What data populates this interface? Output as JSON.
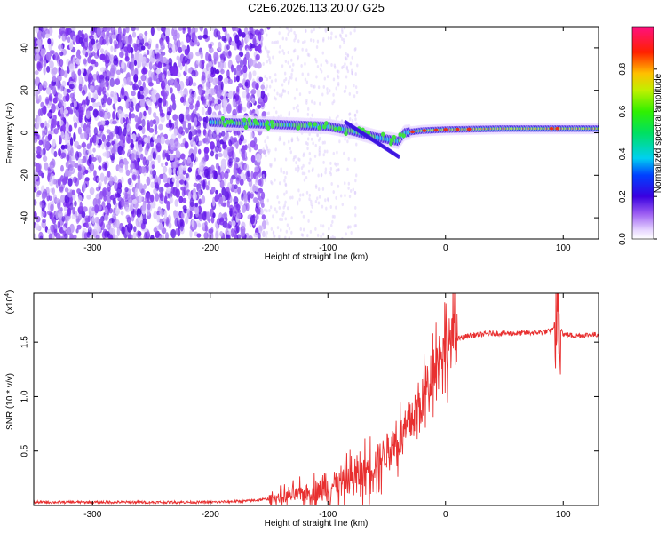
{
  "figure": {
    "title": "C2E6.2026.113.20.07.G25"
  },
  "chart_data": [
    {
      "type": "heatmap",
      "name": "spectrogram",
      "xlabel": "Height of straight line (km)",
      "ylabel": "Frequency (Hz)",
      "xlim": [
        -350,
        130
      ],
      "ylim": [
        -50,
        50
      ],
      "xticks": [
        -300,
        -200,
        -100,
        0,
        100
      ],
      "yticks": [
        -40,
        -20,
        0,
        20,
        40
      ],
      "colorbar": {
        "label": "Normalized spectral amplitude",
        "range": [
          0,
          1
        ],
        "ticks": [
          0.0,
          0.2,
          0.4,
          0.6,
          0.8
        ]
      },
      "ridge": [
        [
          -200,
          5
        ],
        [
          -150,
          4
        ],
        [
          -100,
          3
        ],
        [
          -80,
          1
        ],
        [
          -60,
          -2
        ],
        [
          -40,
          -4
        ],
        [
          -35,
          0
        ],
        [
          -20,
          1
        ],
        [
          0,
          1.5
        ],
        [
          50,
          2
        ],
        [
          100,
          2
        ],
        [
          130,
          2
        ]
      ]
    },
    {
      "type": "line",
      "name": "snr",
      "xlabel": "Height of straight line (km)",
      "ylabel": "SNR (10 * v/v)",
      "multiplier": "(x10",
      "multiplier_exp": "4",
      "multiplier_close": ")",
      "xlim": [
        -350,
        130
      ],
      "ylim": [
        0,
        1.95
      ],
      "xticks": [
        -300,
        -200,
        -100,
        0,
        100
      ],
      "yticks": [
        0.5,
        1.0,
        1.5
      ],
      "color": "#e83030",
      "series": [
        {
          "name": "SNR",
          "x": [
            -350,
            -300,
            -250,
            -200,
            -170,
            -150,
            -130,
            -110,
            -100,
            -90,
            -80,
            -70,
            -60,
            -50,
            -40,
            -30,
            -20,
            -15,
            -10,
            -5,
            0,
            10,
            20,
            30,
            40,
            60,
            80,
            90,
            95,
            100,
            110,
            130
          ],
          "y": [
            0.03,
            0.03,
            0.03,
            0.03,
            0.04,
            0.06,
            0.09,
            0.13,
            0.17,
            0.2,
            0.24,
            0.3,
            0.38,
            0.5,
            0.6,
            0.75,
            0.95,
            1.1,
            1.3,
            1.4,
            1.48,
            1.53,
            1.56,
            1.57,
            1.58,
            1.58,
            1.59,
            1.6,
            1.72,
            1.57,
            1.56,
            1.57
          ]
        }
      ]
    }
  ]
}
